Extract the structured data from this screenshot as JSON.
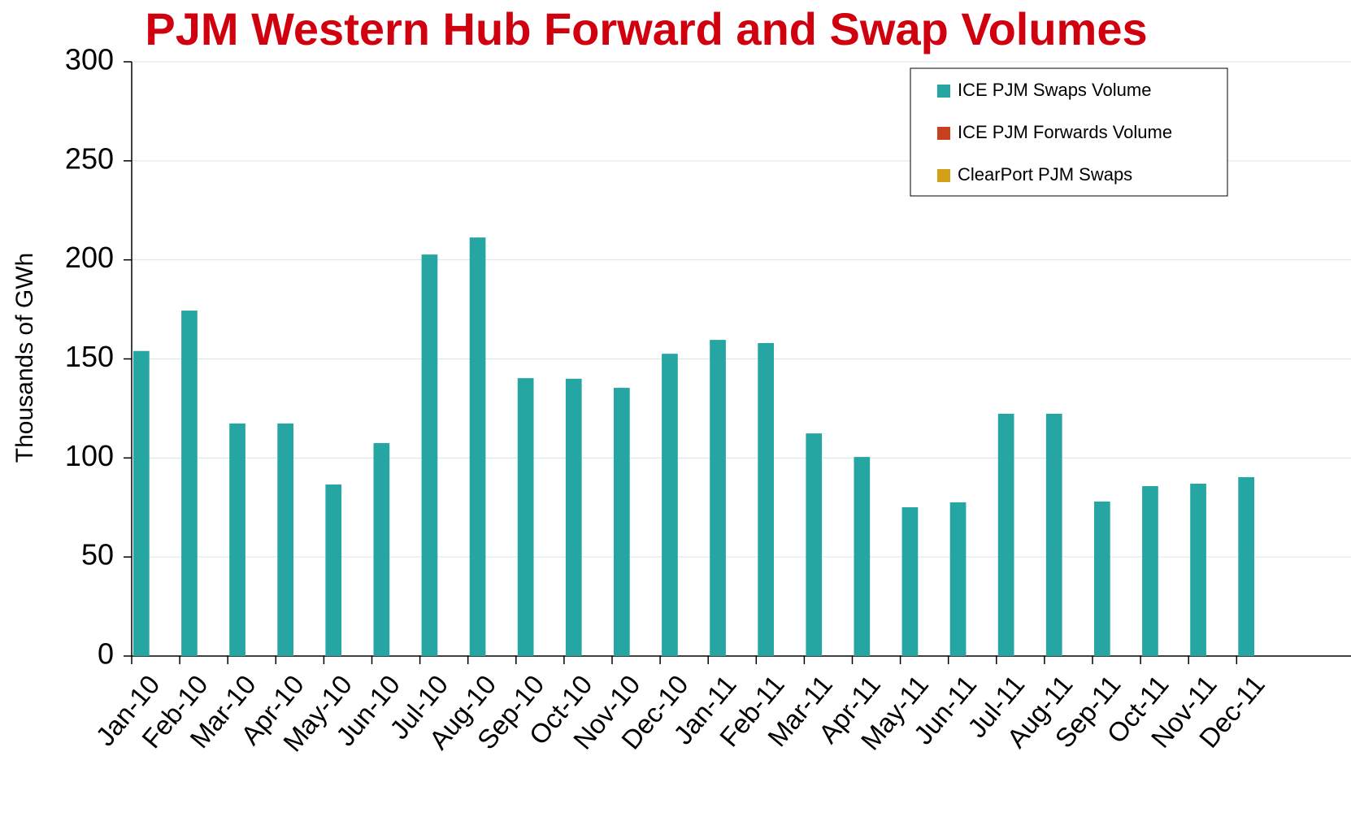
{
  "chart_data": {
    "type": "bar",
    "title": "PJM Western Hub Forward and Swap Volumes",
    "y_label": "Thousands of GWh",
    "categories": [
      "Jan-10",
      "Feb-10",
      "Mar-10",
      "Apr-10",
      "May-10",
      "Jun-10",
      "Jul-10",
      "Aug-10",
      "Sep-10",
      "Oct-10",
      "Nov-10",
      "Dec-10",
      "Jan-11",
      "Feb-11",
      "Mar-11",
      "Apr-11",
      "May-11",
      "Jun-11",
      "Jul-11",
      "Aug-11",
      "Sep-11",
      "Oct-11",
      "Nov-11",
      "Dec-11"
    ],
    "series": [
      {
        "name": "ICE PJM Swaps Volume",
        "color": "#26a6a2",
        "values": [
          154,
          174.4,
          117.4,
          117.4,
          86.6,
          107.5,
          202.7,
          211.3,
          140.3,
          140,
          135.4,
          152.6,
          159.6,
          158,
          112.4,
          100.5,
          75.1,
          77.6,
          122.3,
          122.3,
          78,
          85.8,
          87,
          90.3
        ]
      },
      {
        "name": "ICE PJM Forwards Volume",
        "color": "#c8401e",
        "values": [
          0,
          0,
          0,
          0,
          0,
          0,
          0,
          0,
          0,
          0,
          0,
          0,
          0,
          0,
          0,
          0,
          0,
          0,
          0,
          0,
          0,
          0,
          0,
          0
        ]
      },
      {
        "name": "ClearPort PJM Swaps",
        "color": "#d4a017",
        "values": [
          0,
          0,
          0,
          0,
          0,
          0,
          0,
          0,
          0,
          0,
          0,
          0,
          0,
          0,
          0,
          0,
          0,
          0,
          0,
          0,
          0,
          0,
          0,
          0
        ]
      }
    ],
    "ylim": [
      0,
      300
    ],
    "yticks": [
      0,
      50,
      100,
      150,
      200,
      250,
      300
    ],
    "grid": true,
    "legend": "upper right"
  }
}
